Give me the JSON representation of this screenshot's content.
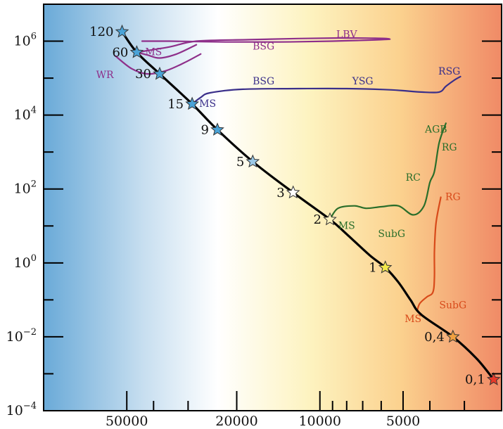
{
  "chart_data": {
    "type": "line",
    "title": "",
    "xlabel": "",
    "ylabel": "",
    "x_scale": "log-reversed",
    "y_scale": "log",
    "xlim": [
      100000,
      2200
    ],
    "ylim": [
      0.0001,
      10000000
    ],
    "x_ticks": [
      {
        "value": 50000,
        "label": "50000"
      },
      {
        "value": 20000,
        "label": "20000"
      },
      {
        "value": 10000,
        "label": "10000"
      },
      {
        "value": 5000,
        "label": "5000"
      }
    ],
    "x_minor_ticks": [
      40000,
      30000,
      9000,
      8000,
      7000,
      6000,
      4000,
      3000
    ],
    "y_ticks": [
      {
        "value": 1000000,
        "base": "10",
        "exp": "6"
      },
      {
        "value": 10000,
        "base": "10",
        "exp": "4"
      },
      {
        "value": 100,
        "base": "10",
        "exp": "2"
      },
      {
        "value": 1,
        "base": "10",
        "exp": "0"
      },
      {
        "value": 0.01,
        "base": "10",
        "exp": "−2"
      },
      {
        "value": 0.0001,
        "base": "10",
        "exp": "−4"
      }
    ],
    "y_minor_ticks": [
      100000,
      1000,
      10,
      0.1,
      0.001
    ],
    "background": {
      "gradient": [
        {
          "stop": 0.0,
          "color": "#6aaad8"
        },
        {
          "stop": 0.22,
          "color": "#c8dff0"
        },
        {
          "stop": 0.38,
          "color": "#ffffff"
        },
        {
          "stop": 0.58,
          "color": "#fdf3c0"
        },
        {
          "stop": 0.78,
          "color": "#fbd18e"
        },
        {
          "stop": 1.0,
          "color": "#f08a66"
        }
      ]
    },
    "main_sequence": {
      "color": "#000000",
      "points": [
        [
          52000,
          1800000
        ],
        [
          46000,
          500000
        ],
        [
          38000,
          130000
        ],
        [
          29000,
          20000
        ],
        [
          23500,
          4000
        ],
        [
          17500,
          550
        ],
        [
          12500,
          80
        ],
        [
          9200,
          15
        ],
        [
          8000,
          6
        ],
        [
          6600,
          1.6
        ],
        [
          5800,
          0.75
        ],
        [
          5200,
          0.3
        ],
        [
          4700,
          0.1
        ],
        [
          4300,
          0.04
        ],
        [
          3300,
          0.01
        ],
        [
          2700,
          0.0025
        ],
        [
          2350,
          0.0007
        ]
      ]
    },
    "stars": [
      {
        "label": "120",
        "temperature": 52000,
        "luminosity": 1800000,
        "color": "#4aa3d8"
      },
      {
        "label": "60",
        "temperature": 46000,
        "luminosity": 500000,
        "color": "#4aa3d8"
      },
      {
        "label": "30",
        "temperature": 38000,
        "luminosity": 130000,
        "color": "#4aa3d8"
      },
      {
        "label": "15",
        "temperature": 29000,
        "luminosity": 20000,
        "color": "#4aa3d8"
      },
      {
        "label": "9",
        "temperature": 23500,
        "luminosity": 4000,
        "color": "#4aa3d8"
      },
      {
        "label": "5",
        "temperature": 17500,
        "luminosity": 550,
        "color": "#9cc9e6"
      },
      {
        "label": "3",
        "temperature": 12500,
        "luminosity": 80,
        "color": "#ffffff"
      },
      {
        "label": "2",
        "temperature": 9200,
        "luminosity": 15,
        "color": "#fff4c0"
      },
      {
        "label": "1",
        "temperature": 5800,
        "luminosity": 0.75,
        "color": "#f2e84a"
      },
      {
        "label": "0,4",
        "temperature": 3300,
        "luminosity": 0.01,
        "color": "#f0a040"
      },
      {
        "label": "0,1",
        "temperature": 2350,
        "luminosity": 0.0007,
        "color": "#e83a2a"
      }
    ],
    "series": [
      {
        "color": "#8e2f8a",
        "points": [
          [
            46000,
            500000
          ],
          [
            35000,
            700000
          ],
          [
            28000,
            1000000
          ],
          [
            18000,
            1100000
          ],
          [
            12000,
            1180000
          ],
          [
            8500,
            1220000
          ],
          [
            6300,
            1200000
          ],
          [
            5600,
            1150000
          ],
          [
            6000,
            1100000
          ],
          [
            9000,
            1000000
          ],
          [
            14000,
            950000
          ],
          [
            22000,
            950000
          ],
          [
            35000,
            1000000
          ],
          [
            44000,
            1000000
          ]
        ]
      },
      {
        "color": "#8e2f8a",
        "points": [
          [
            46000,
            500000
          ],
          [
            42000,
            420000
          ],
          [
            38000,
            350000
          ],
          [
            33000,
            450000
          ],
          [
            28000,
            800000
          ]
        ]
      },
      {
        "color": "#8e2f8a",
        "points": [
          [
            55000,
            400000
          ],
          [
            48000,
            180000
          ],
          [
            42000,
            130000
          ],
          [
            36000,
            160000
          ],
          [
            31000,
            260000
          ],
          [
            27000,
            450000
          ]
        ]
      },
      {
        "color": "#3a2f8a",
        "points": [
          [
            29000,
            20000
          ],
          [
            27000,
            30000
          ],
          [
            25000,
            40000
          ],
          [
            19000,
            50000
          ],
          [
            12000,
            52000
          ],
          [
            8000,
            52000
          ],
          [
            5500,
            48000
          ],
          [
            4300,
            42000
          ],
          [
            3700,
            42000
          ],
          [
            3500,
            60000
          ],
          [
            3250,
            90000
          ],
          [
            3100,
            110000
          ]
        ]
      },
      {
        "color": "#2a6e2a",
        "points": [
          [
            9200,
            15
          ],
          [
            8600,
            30
          ],
          [
            7500,
            35
          ],
          [
            6800,
            30
          ],
          [
            6000,
            33
          ],
          [
            5200,
            35
          ],
          [
            4600,
            20
          ],
          [
            4200,
            35
          ],
          [
            4000,
            150
          ],
          [
            3850,
            300
          ],
          [
            3700,
            1800
          ],
          [
            3500,
            6000
          ]
        ]
      },
      {
        "color": "#d84a1a",
        "points": [
          [
            4450,
            0.05
          ],
          [
            4350,
            0.08
          ],
          [
            4100,
            0.12
          ],
          [
            3900,
            0.16
          ],
          [
            3850,
            0.4
          ],
          [
            3850,
            2
          ],
          [
            3800,
            12
          ],
          [
            3650,
            60
          ]
        ]
      }
    ],
    "annotations": [
      {
        "text": "LBV",
        "temperature": 8000,
        "luminosity": 1500000,
        "color": "#8e2f8a"
      },
      {
        "text": "BSG",
        "temperature": 16000,
        "luminosity": 700000,
        "color": "#8e2f8a"
      },
      {
        "text": "MS",
        "temperature": 40000,
        "luminosity": 500000,
        "color": "#8e2f8a"
      },
      {
        "text": "WR",
        "temperature": 60000,
        "luminosity": 120000,
        "color": "#8e2f8a"
      },
      {
        "text": "BSG",
        "temperature": 16000,
        "luminosity": 80000,
        "color": "#3a2f8a"
      },
      {
        "text": "YSG",
        "temperature": 7000,
        "luminosity": 80000,
        "color": "#3a2f8a"
      },
      {
        "text": "RSG",
        "temperature": 3400,
        "luminosity": 150000,
        "color": "#3a2f8a"
      },
      {
        "text": "MS",
        "temperature": 25500,
        "luminosity": 20000,
        "color": "#3a2f8a"
      },
      {
        "text": "AGB",
        "temperature": 3800,
        "luminosity": 4000,
        "color": "#2a6e2a"
      },
      {
        "text": "RG",
        "temperature": 3400,
        "luminosity": 1300,
        "color": "#2a6e2a"
      },
      {
        "text": "RC",
        "temperature": 4600,
        "luminosity": 200,
        "color": "#2a6e2a"
      },
      {
        "text": "MS",
        "temperature": 8000,
        "luminosity": 10,
        "color": "#2a6e2a"
      },
      {
        "text": "SubG",
        "temperature": 5500,
        "luminosity": 6,
        "color": "#2a6e2a"
      },
      {
        "text": "RG",
        "temperature": 3300,
        "luminosity": 60,
        "color": "#d84a1a"
      },
      {
        "text": "SubG",
        "temperature": 3300,
        "luminosity": 0.07,
        "color": "#d84a1a"
      },
      {
        "text": "MS",
        "temperature": 4600,
        "luminosity": 0.03,
        "color": "#d84a1a"
      }
    ]
  }
}
